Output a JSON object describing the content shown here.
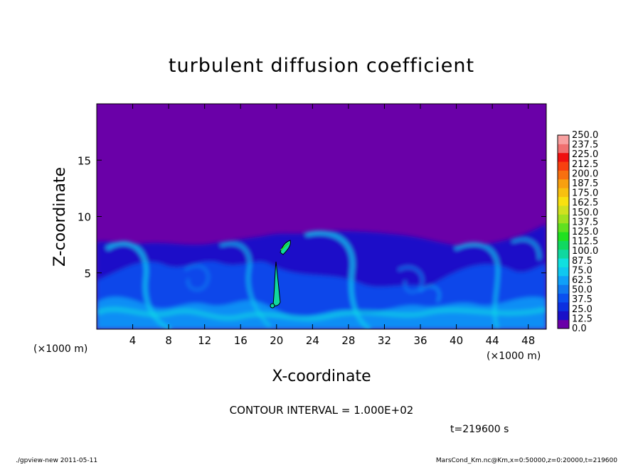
{
  "chart_data": {
    "type": "heatmap",
    "title": "turbulent diffusion coefficient",
    "xlabel": "X-coordinate",
    "ylabel": "Z-coordinate",
    "x_unit": "(×1000 m)",
    "y_unit": "(×1000 m)",
    "xlim": [
      0,
      50
    ],
    "ylim": [
      0,
      20
    ],
    "x_ticks": [
      4,
      8,
      12,
      16,
      20,
      24,
      28,
      32,
      36,
      40,
      44,
      48
    ],
    "y_ticks": [
      5,
      10,
      15
    ],
    "colorbar": {
      "levels": [
        "0.0",
        "12.5",
        "25.0",
        "37.5",
        "50.0",
        "62.5",
        "75.0",
        "87.5",
        "100.0",
        "112.5",
        "125.0",
        "137.5",
        "150.0",
        "162.5",
        "175.0",
        "187.5",
        "200.0",
        "212.5",
        "225.0",
        "237.5",
        "250.0"
      ],
      "colors": [
        "#6a00a8",
        "#1a10c8",
        "#0c30e0",
        "#0a50f0",
        "#1078f0",
        "#10a0f8",
        "#10c8f0",
        "#10e0e0",
        "#10d8a0",
        "#10d860",
        "#20e020",
        "#60e020",
        "#a0e020",
        "#d0e020",
        "#f8e010",
        "#f8c010",
        "#f8a010",
        "#f87010",
        "#f84010",
        "#f01010",
        "#f07070",
        "#f8a0a0"
      ]
    },
    "contour_interval": "CONTOUR INTERVAL = 1.000E+02",
    "contour_level": 100,
    "domain_summary": {
      "plateau_top_z": [
        7.3,
        8.2
      ],
      "above_plateau_value": 0,
      "max_region": {
        "x": [
          19.5,
          21.5
        ],
        "z": [
          2,
          8
        ],
        "value_gt": 100
      }
    },
    "time_label": "t=219600 s"
  },
  "footer": {
    "left": "./gpview-new   2011-05-11",
    "right": "MarsCond_Km.nc@Km,x=0:50000,z=0:20000,t=219600"
  },
  "colors": {
    "background_fill": "#6a00a8",
    "low_band": "#1a10c8"
  }
}
